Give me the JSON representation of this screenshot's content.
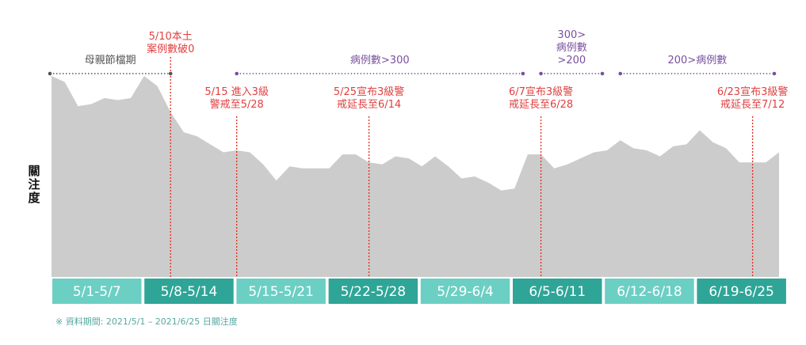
{
  "chart_data": {
    "type": "area",
    "ylabel": "關注度",
    "footnote": "※ 資料期間: 2021/5/1 – 2021/6/25 日關注度",
    "colors": {
      "area": "#cccccc",
      "event": "#e8291c",
      "event_text": "#e04040",
      "range_purple": "#7a4fa0",
      "range_gray": "#555555",
      "week_light": "#6ccfc3",
      "week_dark": "#2fa597"
    },
    "dates": [
      "5/1",
      "5/2",
      "5/3",
      "5/4",
      "5/5",
      "5/6",
      "5/7",
      "5/8",
      "5/9",
      "5/10",
      "5/11",
      "5/12",
      "5/13",
      "5/14",
      "5/15",
      "5/16",
      "5/17",
      "5/18",
      "5/19",
      "5/20",
      "5/21",
      "5/22",
      "5/23",
      "5/24",
      "5/25",
      "5/26",
      "5/27",
      "5/28",
      "5/29",
      "5/30",
      "5/31",
      "6/1",
      "6/2",
      "6/3",
      "6/4",
      "6/5",
      "6/6",
      "6/7",
      "6/8",
      "6/9",
      "6/10",
      "6/11",
      "6/12",
      "6/13",
      "6/14",
      "6/15",
      "6/16",
      "6/17",
      "6/18",
      "6/19",
      "6/20",
      "6/21",
      "6/22",
      "6/23",
      "6/24",
      "6/25"
    ],
    "values": [
      100,
      97,
      85,
      86,
      89,
      88,
      89,
      100,
      95,
      82,
      72,
      70,
      66,
      62,
      63,
      62,
      56,
      48,
      55,
      54,
      54,
      54,
      61,
      61,
      57,
      56,
      60,
      59,
      55,
      60,
      55,
      49,
      50,
      47,
      43,
      44,
      61,
      61,
      54,
      56,
      59,
      62,
      63,
      68,
      64,
      63,
      60,
      65,
      66,
      73,
      67,
      64,
      57,
      57,
      57,
      62
    ],
    "ylim": [
      0,
      100
    ],
    "week_labels": [
      "5/1-5/7",
      "5/8-5/14",
      "5/15-5/21",
      "5/22-5/28",
      "5/29-6/4",
      "6/5-6/11",
      "6/12-6/18",
      "6/19-6/25"
    ],
    "event_lines": [
      {
        "date": "5/10",
        "lines": [
          "5/10本土",
          "案例數破0"
        ]
      },
      {
        "date": "5/15",
        "lines": [
          "5/15 進入3級",
          "警戒至5/28"
        ]
      },
      {
        "date": "5/25",
        "lines": [
          "5/25宣布3級警",
          "戒延長至6/14"
        ]
      },
      {
        "date": "6/7",
        "lines": [
          "6/7宣布3級警",
          "戒延長至6/28"
        ]
      },
      {
        "date": "6/23",
        "lines": [
          "6/23宣布3級警",
          "戒延長至7/12"
        ]
      }
    ],
    "ranges": [
      {
        "from": "5/1",
        "to": "5/10",
        "lines": [
          "母親節檔期"
        ],
        "style": "gray"
      },
      {
        "from": "5/15",
        "to": "6/6",
        "lines": [
          "病例數>300"
        ],
        "style": "purple"
      },
      {
        "from": "6/7",
        "to": "6/12",
        "lines": [
          "300>",
          "病例數",
          ">200"
        ],
        "style": "purple"
      },
      {
        "from": "6/13",
        "to": "6/25",
        "lines": [
          "200>病例數"
        ],
        "style": "purple"
      }
    ]
  }
}
